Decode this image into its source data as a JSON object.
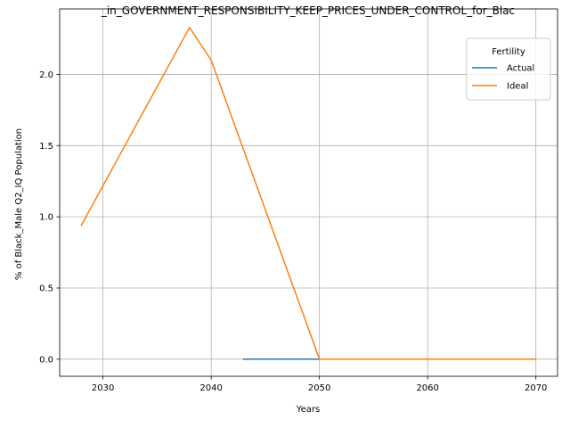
{
  "chart_data": {
    "type": "line",
    "title": "_in_GOVERNMENT_RESPONSIBILITY_KEEP_PRICES_UNDER_CONTROL_for_Blac",
    "xlabel": "Years",
    "ylabel": "% of Black_Male Q2_IQ Population",
    "xlim": [
      2026,
      2072
    ],
    "ylim": [
      -0.12,
      2.46
    ],
    "xticks": [
      2030,
      2040,
      2050,
      2060,
      2070
    ],
    "yticks": [
      0.0,
      0.5,
      1.0,
      1.5,
      2.0
    ],
    "ytick_labels": [
      "0.0",
      "0.5",
      "1.0",
      "1.5",
      "2.0"
    ],
    "grid": true,
    "legend": {
      "title": "Fertility",
      "position": "top-right"
    },
    "series": [
      {
        "name": "Actual",
        "color": "#1f77b4",
        "points": [
          [
            2043,
            0.0
          ],
          [
            2050,
            0.0
          ]
        ]
      },
      {
        "name": "Ideal",
        "color": "#ff7f0e",
        "points": [
          [
            2028,
            0.94
          ],
          [
            2038,
            2.33
          ],
          [
            2040,
            2.1
          ],
          [
            2050,
            0.0
          ],
          [
            2070,
            0.0
          ]
        ]
      }
    ]
  }
}
